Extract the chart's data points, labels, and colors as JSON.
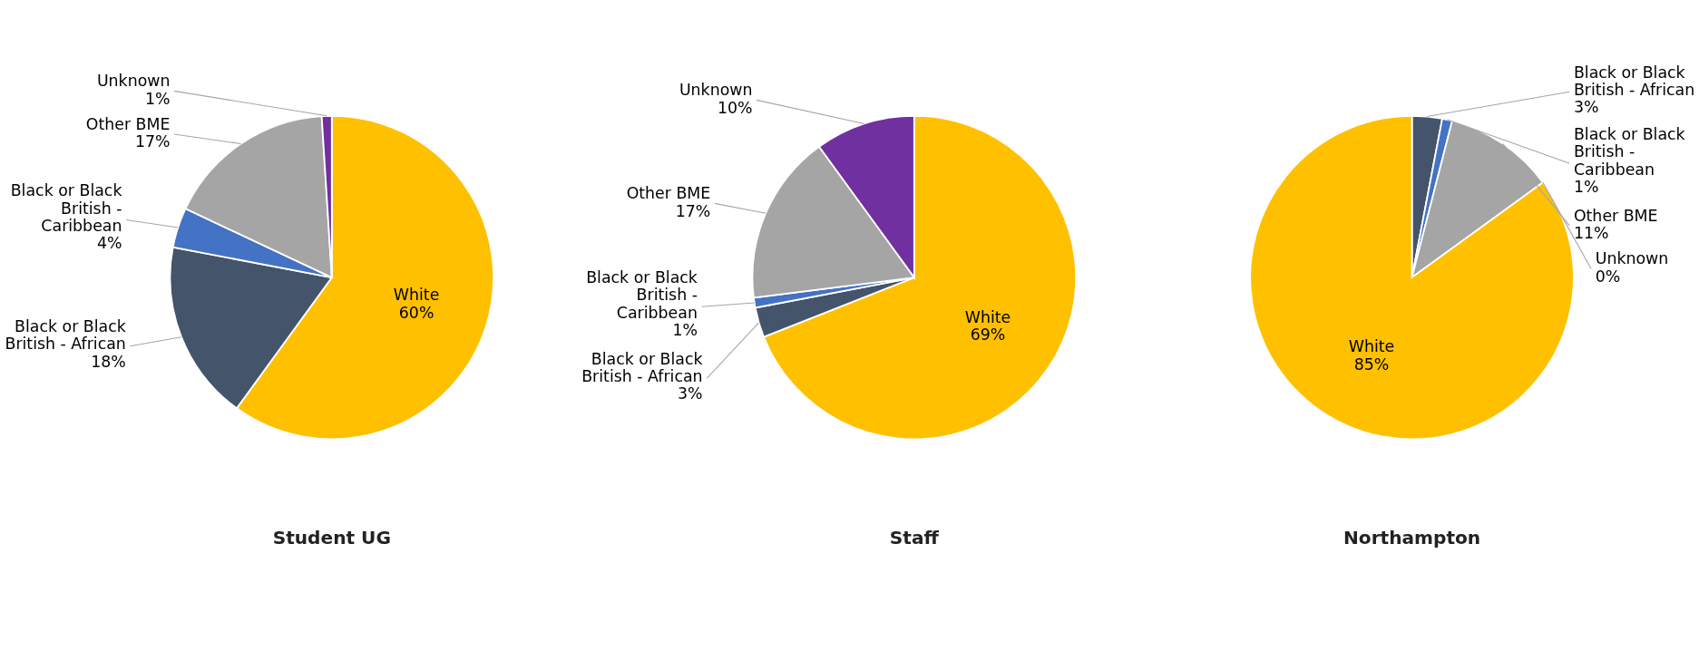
{
  "chart_data": [
    {
      "type": "pie",
      "title": "Student UG",
      "categories": [
        "White",
        "Black or Black British - African",
        "Black or Black British - Caribbean",
        "Other BME",
        "Unknown"
      ],
      "values": [
        60,
        18,
        4,
        17,
        1
      ],
      "value_labels": [
        "60%",
        "18%",
        "4%",
        "17%",
        "1%"
      ],
      "colors": [
        "#ffc000",
        "#44546a",
        "#4472c4",
        "#a5a5a5",
        "#7030a0"
      ],
      "legend": false
    },
    {
      "type": "pie",
      "title": "Staff",
      "categories": [
        "White",
        "Black or Black British - African",
        "Black or Black British - Caribbean",
        "Other BME",
        "Unknown"
      ],
      "values": [
        69,
        3,
        1,
        17,
        10
      ],
      "value_labels": [
        "69%",
        "3%",
        "1%",
        "17%",
        "10%"
      ],
      "colors": [
        "#ffc000",
        "#44546a",
        "#4472c4",
        "#a5a5a5",
        "#7030a0"
      ],
      "legend": false
    },
    {
      "type": "pie",
      "title": "Northampton",
      "categories": [
        "Black or Black British - African",
        "Black or Black British - Caribbean",
        "Other BME",
        "Unknown",
        "White"
      ],
      "values": [
        3,
        1,
        11,
        0,
        85
      ],
      "value_labels": [
        "3%",
        "1%",
        "11%",
        "0%",
        "85%"
      ],
      "colors": [
        "#44546a",
        "#4472c4",
        "#a5a5a5",
        "#7030a0",
        "#ffc000"
      ],
      "legend": false
    }
  ]
}
